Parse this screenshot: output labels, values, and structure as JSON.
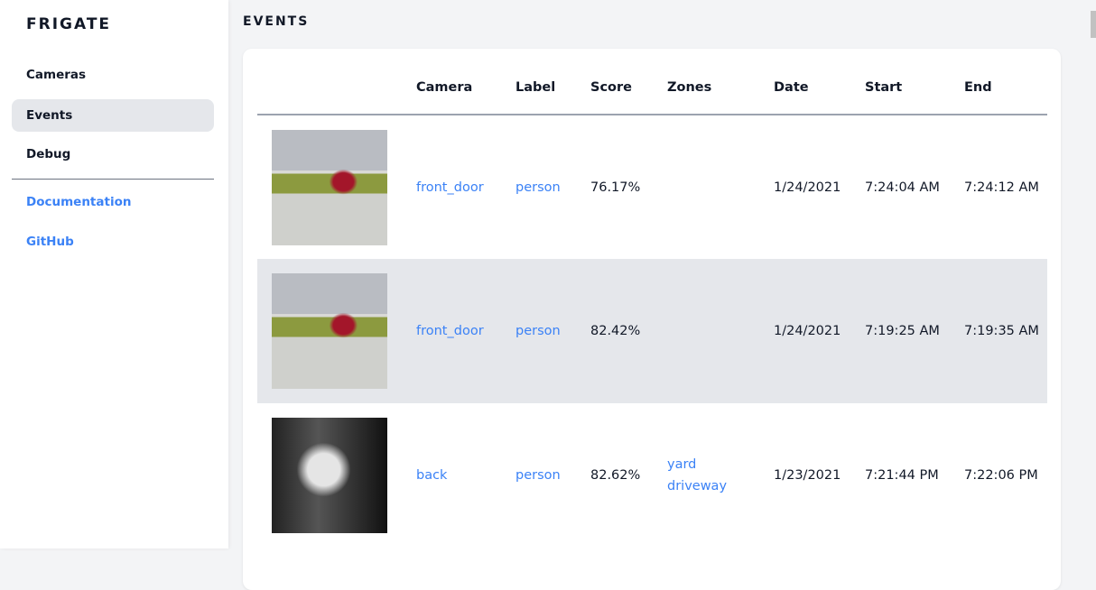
{
  "app": {
    "title": "FRIGATE"
  },
  "sidebar": {
    "items": [
      {
        "label": "Cameras",
        "active": false
      },
      {
        "label": "Events",
        "active": true
      },
      {
        "label": "Debug",
        "active": false
      }
    ],
    "links": [
      {
        "label": "Documentation"
      },
      {
        "label": "GitHub"
      }
    ]
  },
  "page": {
    "title": "EVENTS"
  },
  "table": {
    "headers": [
      "",
      "Camera",
      "Label",
      "Score",
      "Zones",
      "Date",
      "Start",
      "End"
    ],
    "rows": [
      {
        "camera": "front_door",
        "label": "person",
        "score": "76.17%",
        "zones": [
          "",
          ""
        ],
        "date": "1/24/2021",
        "start": "7:24:04 AM",
        "end": "7:24:12 AM",
        "thumb": "day"
      },
      {
        "camera": "front_door",
        "label": "person",
        "score": "82.42%",
        "zones": [
          "",
          ""
        ],
        "date": "1/24/2021",
        "start": "7:19:25 AM",
        "end": "7:19:35 AM",
        "thumb": "day"
      },
      {
        "camera": "back",
        "label": "person",
        "score": "82.62%",
        "zones": [
          "yard",
          "driveway"
        ],
        "date": "1/23/2021",
        "start": "7:21:44 PM",
        "end": "7:22:06 PM",
        "thumb": "night"
      }
    ]
  }
}
